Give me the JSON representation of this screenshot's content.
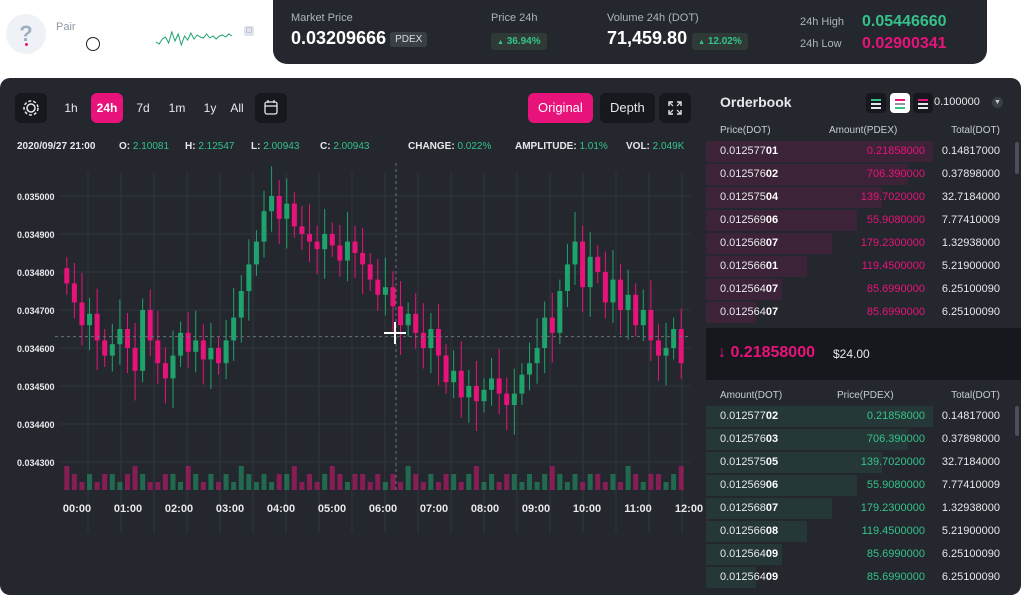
{
  "pair": {
    "label": "Pair",
    "icon_glyph": "?",
    "sparkline": [
      20,
      22,
      17,
      15,
      21,
      10,
      19,
      12,
      23,
      14,
      18,
      11,
      17,
      13,
      15,
      16,
      12,
      16,
      14,
      17,
      14,
      13,
      15,
      12,
      14
    ]
  },
  "stats": {
    "market_price_label": "Market Price",
    "market_price": "0.03209666",
    "market_price_unit": "PDEX",
    "price_24h_label": "Price 24h",
    "price_24h_change": "36.94%",
    "volume_label": "Volume 24h (DOT)",
    "volume": "71,459.80",
    "volume_change": "12.02%",
    "high_label": "24h High",
    "high": "0.05446660",
    "low_label": "24h Low",
    "low": "0.02900341",
    "up_arrow": "▲",
    "colors": {
      "up": "#35c28a",
      "down": "#e8137a",
      "accent": "#e8137a",
      "high": "#35c28a",
      "low": "#e8137a"
    }
  },
  "toolbar": {
    "settings_icon": "settings-icon",
    "timeframes": [
      "1h",
      "24h",
      "7d",
      "1m",
      "1y",
      "All"
    ],
    "active_timeframe": "24h",
    "calendar_icon": "calendar-icon",
    "original_label": "Original",
    "depth_label": "Depth",
    "fullscreen_icon": "fullscreen-icon"
  },
  "ohlc": {
    "date": "2020/09/27 21:00",
    "open_label": "O:",
    "open": "2.10081",
    "high_label": "H:",
    "high": "2.12547",
    "low_label": "L:",
    "low": "2.00943",
    "close_label": "C:",
    "close": "2.00943",
    "change_label": "CHANGE:",
    "change": "0.022%",
    "amplitude_label": "AMPLITUDE:",
    "amplitude": "1.01%",
    "vol_label": "VOL:",
    "vol": "2.049K"
  },
  "chart_data": {
    "type": "candlestick",
    "y_ticks": [
      "0.035000",
      "0.034900",
      "0.034800",
      "0.034700",
      "0.034600",
      "0.034500",
      "0.034400",
      "0.034300"
    ],
    "x_ticks": [
      "00:00",
      "01:00",
      "02:00",
      "03:00",
      "04:00",
      "05:00",
      "06:00",
      "07:00",
      "08:00",
      "09:00",
      "10:00",
      "11:00",
      "12:00"
    ],
    "ylim": [
      0.0343,
      0.035
    ],
    "grid": true,
    "crosshair_value": 0.03463,
    "close_values": [
      0.03477,
      0.03472,
      0.03466,
      0.03469,
      0.03462,
      0.03458,
      0.03461,
      0.03465,
      0.0346,
      0.03454,
      0.0347,
      0.03462,
      0.03456,
      0.03452,
      0.03458,
      0.03464,
      0.03459,
      0.03462,
      0.03457,
      0.0346,
      0.03456,
      0.03462,
      0.03468,
      0.03475,
      0.03482,
      0.03488,
      0.03496,
      0.035,
      0.03494,
      0.03498,
      0.03492,
      0.0349,
      0.03488,
      0.03486,
      0.0349,
      0.03487,
      0.03483,
      0.03488,
      0.03485,
      0.03482,
      0.03478,
      0.03474,
      0.03476,
      0.03471,
      0.03466,
      0.03469,
      0.03464,
      0.0346,
      0.03465,
      0.03458,
      0.03451,
      0.03454,
      0.03447,
      0.0345,
      0.03446,
      0.03449,
      0.03452,
      0.03448,
      0.03445,
      0.03448,
      0.03453,
      0.03456,
      0.0346,
      0.03468,
      0.03464,
      0.03475,
      0.03482,
      0.03488,
      0.03476,
      0.03484,
      0.0348,
      0.03472,
      0.03478,
      0.0347,
      0.03474,
      0.03466,
      0.0347,
      0.03462,
      0.03458,
      0.0346,
      0.03465,
      0.03456
    ],
    "volumes": [
      3,
      2,
      1,
      2,
      1,
      2,
      2,
      1,
      2,
      3,
      2,
      1,
      1,
      2,
      2,
      1,
      3,
      2,
      1,
      2,
      1,
      2,
      1,
      3,
      2,
      1,
      2,
      1,
      2,
      2,
      3,
      1,
      2,
      1,
      2,
      3,
      2,
      1,
      2,
      2,
      1,
      2,
      1,
      2,
      1,
      3,
      2,
      1,
      2,
      1,
      2,
      2,
      1,
      2,
      3,
      1,
      2,
      1,
      2,
      2,
      1,
      2,
      1,
      2,
      3,
      2,
      1,
      2,
      1,
      2,
      2,
      1,
      2,
      1,
      3,
      2,
      1,
      2,
      2,
      1,
      2,
      3
    ]
  },
  "orderbook": {
    "title": "Orderbook",
    "precision": "0.100000",
    "asks_headers": [
      "Price(DOT)",
      "Amount(PDEX)",
      "Total(DOT)"
    ],
    "asks": [
      {
        "price_dim": "0.012577",
        "price_bold": "01",
        "amount": "0.21858000",
        "total": "0.14817000",
        "depth": 0.72
      },
      {
        "price_dim": "0.012576",
        "price_bold": "02",
        "amount": "706.390000",
        "total": "0.37898000",
        "depth": 0.64
      },
      {
        "price_dim": "0.012575",
        "price_bold": "04",
        "amount": "139.7020000",
        "total": "32.7184000",
        "depth": 0.56
      },
      {
        "price_dim": "0.012569",
        "price_bold": "06",
        "amount": "55.9080000",
        "total": "7.77410009",
        "depth": 0.48
      },
      {
        "price_dim": "0.012568",
        "price_bold": "07",
        "amount": "179.2300000",
        "total": "1.32938000",
        "depth": 0.4
      },
      {
        "price_dim": "0.012566",
        "price_bold": "01",
        "amount": "119.4500000",
        "total": "5.21900000",
        "depth": 0.32
      },
      {
        "price_dim": "0.012564",
        "price_bold": "07",
        "amount": "85.6990000",
        "total": "6.25100090",
        "depth": 0.24
      },
      {
        "price_dim": "0.012564",
        "price_bold": "07",
        "amount": "85.6990000",
        "total": "6.25100090",
        "depth": 0.16
      }
    ],
    "mid_arrow": "↓",
    "mid_price": "0.21858000",
    "mid_usd": "$24.00",
    "bids_headers": [
      "Amount(DOT)",
      "Price(PDEX)",
      "Total(DOT)"
    ],
    "bids": [
      {
        "price_dim": "0.012577",
        "price_bold": "02",
        "amount": "0.21858000",
        "total": "0.14817000",
        "depth": 0.72
      },
      {
        "price_dim": "0.012576",
        "price_bold": "03",
        "amount": "706.390000",
        "total": "0.37898000",
        "depth": 0.64
      },
      {
        "price_dim": "0.012575",
        "price_bold": "05",
        "amount": "139.7020000",
        "total": "32.7184000",
        "depth": 0.56
      },
      {
        "price_dim": "0.012569",
        "price_bold": "06",
        "amount": "55.9080000",
        "total": "7.77410009",
        "depth": 0.48
      },
      {
        "price_dim": "0.012568",
        "price_bold": "07",
        "amount": "179.2300000",
        "total": "1.32938000",
        "depth": 0.4
      },
      {
        "price_dim": "0.012566",
        "price_bold": "08",
        "amount": "119.4500000",
        "total": "5.21900000",
        "depth": 0.32
      },
      {
        "price_dim": "0.012564",
        "price_bold": "09",
        "amount": "85.6990000",
        "total": "6.25100090",
        "depth": 0.24
      },
      {
        "price_dim": "0.012564",
        "price_bold": "09",
        "amount": "85.6990000",
        "total": "6.25100090",
        "depth": 0.16
      }
    ]
  }
}
